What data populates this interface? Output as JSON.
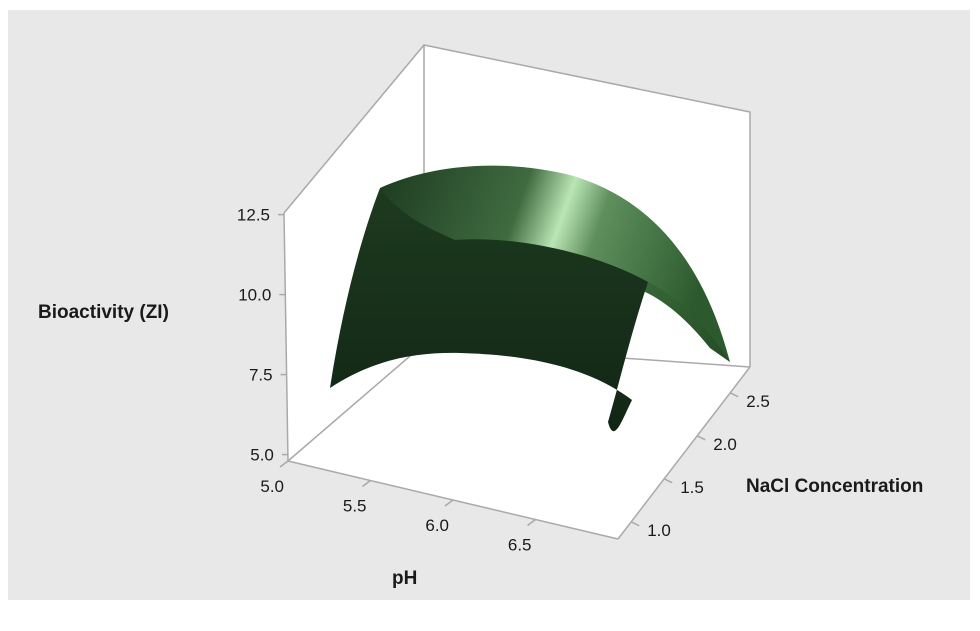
{
  "chart_data": {
    "type": "surface",
    "xlabel": "pH",
    "ylabel": "NaCl Concentration",
    "zlabel": "Bioactivity (ZI)",
    "x_ticks": [
      "5.0",
      "5.5",
      "6.0",
      "6.5"
    ],
    "y_ticks": [
      "1.0",
      "1.5",
      "2.0",
      "2.5"
    ],
    "z_ticks": [
      "5.0",
      "7.5",
      "10.0",
      "12.5"
    ],
    "xlim": [
      5.0,
      7.0
    ],
    "ylim": [
      0.8,
      2.8
    ],
    "zlim": [
      4.8,
      15.0
    ],
    "surface_corners": [
      {
        "pH": 5.0,
        "nacl": 1.0,
        "zi": 8.0
      },
      {
        "pH": 7.0,
        "nacl": 1.0,
        "zi": 7.8
      },
      {
        "pH": 5.0,
        "nacl": 2.8,
        "zi": 8.3
      },
      {
        "pH": 7.0,
        "nacl": 2.8,
        "zi": 7.8
      }
    ],
    "surface_peak": {
      "pH": 6.0,
      "nacl": 2.3,
      "zi": 12.7
    },
    "surface_color": "#1c3a1f",
    "highlight_color": "#b9e6b4",
    "background_color": "#e8e8e8",
    "floor_color": "#ffffff",
    "grid": false
  }
}
